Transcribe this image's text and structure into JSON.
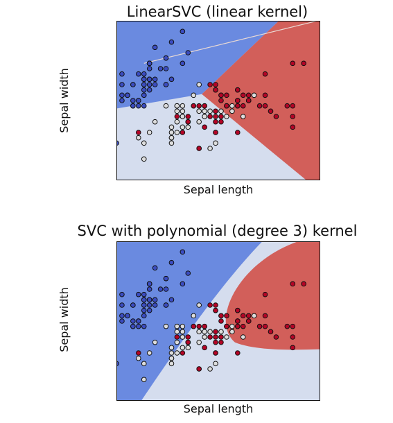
{
  "chart_data": [
    {
      "type": "scatter",
      "title": "LinearSVC (linear kernel)",
      "xlabel": "Sepal length",
      "ylabel": "Sepal width",
      "kernel": "linear",
      "xlim": [
        4.5,
        8.2
      ],
      "ylim": [
        1.6,
        4.6
      ],
      "xticks": [],
      "yticks": [],
      "grid": false,
      "legend": "none",
      "region_colors": {
        "class0": "#6a8ae0",
        "class1": "#d5ddee",
        "class2": "#d25f5a"
      },
      "boundary_line": {
        "x0": 5.0,
        "y0": 3.8,
        "x1": 8.2,
        "y1": 4.6
      }
    },
    {
      "type": "scatter",
      "title": "SVC with polynomial (degree 3) kernel",
      "xlabel": "Sepal length",
      "ylabel": "Sepal width",
      "kernel": "poly",
      "xlim": [
        4.5,
        8.2
      ],
      "ylim": [
        1.6,
        4.6
      ],
      "xticks": [],
      "yticks": [],
      "grid": false,
      "legend": "none",
      "region_colors": {
        "class0": "#6a8ae0",
        "class1": "#d5ddee",
        "class2": "#d25f5a"
      }
    }
  ],
  "points": {
    "colors": {
      "setosa": "#3b4cc0",
      "versicolor": "#dddddd",
      "virginica": "#b40426"
    },
    "setosa": [
      [
        5.1,
        3.5
      ],
      [
        4.9,
        3.0
      ],
      [
        4.7,
        3.2
      ],
      [
        4.6,
        3.1
      ],
      [
        5.0,
        3.6
      ],
      [
        5.4,
        3.9
      ],
      [
        4.6,
        3.4
      ],
      [
        5.0,
        3.4
      ],
      [
        4.4,
        2.9
      ],
      [
        4.9,
        3.1
      ],
      [
        5.4,
        3.7
      ],
      [
        4.8,
        3.4
      ],
      [
        4.8,
        3.0
      ],
      [
        4.3,
        3.0
      ],
      [
        5.8,
        4.0
      ],
      [
        5.7,
        4.4
      ],
      [
        5.4,
        3.9
      ],
      [
        5.1,
        3.5
      ],
      [
        5.7,
        3.8
      ],
      [
        5.1,
        3.8
      ],
      [
        5.4,
        3.4
      ],
      [
        5.1,
        3.7
      ],
      [
        4.6,
        3.6
      ],
      [
        5.1,
        3.3
      ],
      [
        4.8,
        3.4
      ],
      [
        5.0,
        3.0
      ],
      [
        5.0,
        3.4
      ],
      [
        5.2,
        3.5
      ],
      [
        5.2,
        3.4
      ],
      [
        4.7,
        3.2
      ],
      [
        4.8,
        3.1
      ],
      [
        5.4,
        3.4
      ],
      [
        5.2,
        4.1
      ],
      [
        5.5,
        4.2
      ],
      [
        4.9,
        3.1
      ],
      [
        5.0,
        3.2
      ],
      [
        5.5,
        3.5
      ],
      [
        4.9,
        3.6
      ],
      [
        4.4,
        3.0
      ],
      [
        5.1,
        3.4
      ],
      [
        5.0,
        3.5
      ],
      [
        4.5,
        2.3
      ],
      [
        4.4,
        3.2
      ],
      [
        5.0,
        3.5
      ],
      [
        5.1,
        3.8
      ],
      [
        4.8,
        3.0
      ],
      [
        5.1,
        3.8
      ],
      [
        4.6,
        3.2
      ],
      [
        5.3,
        3.7
      ],
      [
        5.0,
        3.3
      ]
    ],
    "versicolor": [
      [
        7.0,
        3.2
      ],
      [
        6.4,
        3.2
      ],
      [
        6.9,
        3.1
      ],
      [
        5.5,
        2.3
      ],
      [
        6.5,
        2.8
      ],
      [
        5.7,
        2.8
      ],
      [
        6.3,
        3.3
      ],
      [
        4.9,
        2.4
      ],
      [
        6.6,
        2.9
      ],
      [
        5.2,
        2.7
      ],
      [
        5.0,
        2.0
      ],
      [
        5.9,
        3.0
      ],
      [
        6.0,
        2.2
      ],
      [
        6.1,
        2.9
      ],
      [
        5.6,
        2.9
      ],
      [
        6.7,
        3.1
      ],
      [
        5.6,
        3.0
      ],
      [
        5.8,
        2.7
      ],
      [
        6.2,
        2.2
      ],
      [
        5.6,
        2.5
      ],
      [
        5.9,
        3.2
      ],
      [
        6.1,
        2.8
      ],
      [
        6.3,
        2.5
      ],
      [
        6.1,
        2.8
      ],
      [
        6.4,
        2.9
      ],
      [
        6.6,
        3.0
      ],
      [
        6.8,
        2.8
      ],
      [
        6.7,
        3.0
      ],
      [
        6.0,
        2.9
      ],
      [
        5.7,
        2.6
      ],
      [
        5.5,
        2.4
      ],
      [
        5.5,
        2.4
      ],
      [
        5.8,
        2.7
      ],
      [
        6.0,
        2.7
      ],
      [
        5.4,
        3.0
      ],
      [
        6.0,
        3.4
      ],
      [
        6.7,
        3.1
      ],
      [
        6.3,
        2.3
      ],
      [
        5.6,
        3.0
      ],
      [
        5.5,
        2.5
      ],
      [
        5.5,
        2.6
      ],
      [
        6.1,
        3.0
      ],
      [
        5.8,
        2.6
      ],
      [
        5.0,
        2.3
      ],
      [
        5.6,
        2.7
      ],
      [
        5.7,
        3.0
      ],
      [
        5.7,
        2.9
      ],
      [
        6.2,
        2.9
      ],
      [
        5.1,
        2.5
      ],
      [
        5.7,
        2.8
      ]
    ],
    "virginica": [
      [
        6.3,
        3.3
      ],
      [
        5.8,
        2.7
      ],
      [
        7.1,
        3.0
      ],
      [
        6.3,
        2.9
      ],
      [
        6.5,
        3.0
      ],
      [
        7.6,
        3.0
      ],
      [
        4.9,
        2.5
      ],
      [
        7.3,
        2.9
      ],
      [
        6.7,
        2.5
      ],
      [
        7.2,
        3.6
      ],
      [
        6.5,
        3.2
      ],
      [
        6.4,
        2.7
      ],
      [
        6.8,
        3.0
      ],
      [
        5.7,
        2.5
      ],
      [
        5.8,
        2.8
      ],
      [
        6.4,
        3.2
      ],
      [
        6.5,
        3.0
      ],
      [
        7.7,
        3.8
      ],
      [
        7.7,
        2.6
      ],
      [
        6.0,
        2.2
      ],
      [
        6.9,
        3.2
      ],
      [
        5.6,
        2.8
      ],
      [
        7.7,
        2.8
      ],
      [
        6.3,
        2.7
      ],
      [
        6.7,
        3.3
      ],
      [
        7.2,
        3.2
      ],
      [
        6.2,
        2.8
      ],
      [
        6.1,
        3.0
      ],
      [
        6.4,
        2.8
      ],
      [
        7.2,
        3.0
      ],
      [
        7.4,
        2.8
      ],
      [
        7.9,
        3.8
      ],
      [
        6.4,
        2.8
      ],
      [
        6.3,
        2.8
      ],
      [
        6.1,
        2.6
      ],
      [
        7.7,
        3.0
      ],
      [
        6.3,
        3.4
      ],
      [
        6.4,
        3.1
      ],
      [
        6.0,
        3.0
      ],
      [
        6.9,
        3.1
      ],
      [
        6.7,
        3.1
      ],
      [
        6.9,
        3.1
      ],
      [
        5.8,
        2.7
      ],
      [
        6.8,
        3.2
      ],
      [
        6.7,
        3.3
      ],
      [
        6.7,
        3.0
      ],
      [
        6.3,
        2.5
      ],
      [
        6.5,
        3.0
      ],
      [
        6.2,
        3.4
      ],
      [
        5.9,
        3.0
      ]
    ]
  }
}
